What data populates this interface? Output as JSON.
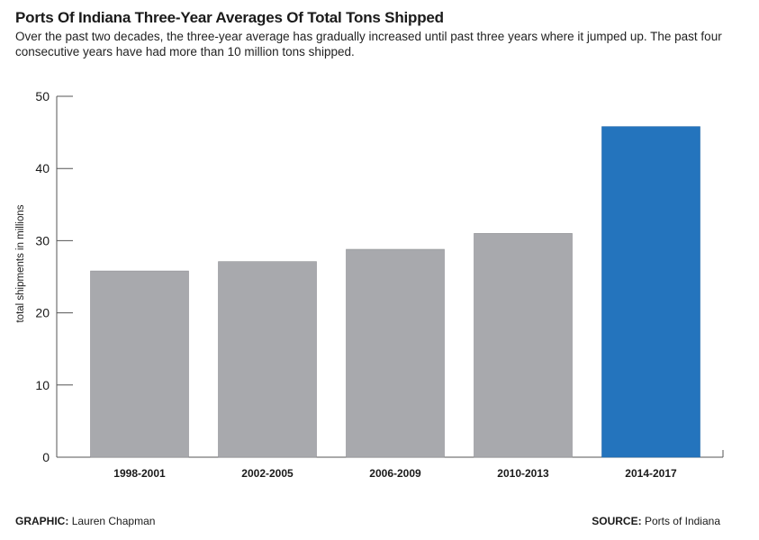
{
  "header": {
    "title": "Ports Of Indiana Three-Year Averages Of Total Tons Shipped",
    "subtitle": "Over the past two decades, the three-year average has gradually increased until past three years where it jumped up. The past four consecutive years have had more than 10 million tons shipped."
  },
  "footer": {
    "graphic_label": "GRAPHIC:",
    "graphic_value": "Lauren Chapman",
    "source_label": "SOURCE:",
    "source_value": "Ports of Indiana"
  },
  "colors": {
    "bar_default": "#a8a9ad",
    "bar_highlight": "#2474bd",
    "axis": "#555555"
  },
  "chart_data": {
    "type": "bar",
    "title": "Ports Of Indiana Three-Year Averages Of Total Tons Shipped",
    "xlabel": "",
    "ylabel": "total shipments in millions",
    "categories": [
      "1998-2001",
      "2002-2005",
      "2006-2009",
      "2010-2013",
      "2014-2017"
    ],
    "values": [
      25.8,
      27.1,
      28.8,
      31.0,
      45.8
    ],
    "highlight_index": 4,
    "ylim": [
      0,
      50
    ],
    "yticks": [
      0,
      10,
      20,
      30,
      40,
      50
    ],
    "grid": false,
    "legend": "none"
  }
}
